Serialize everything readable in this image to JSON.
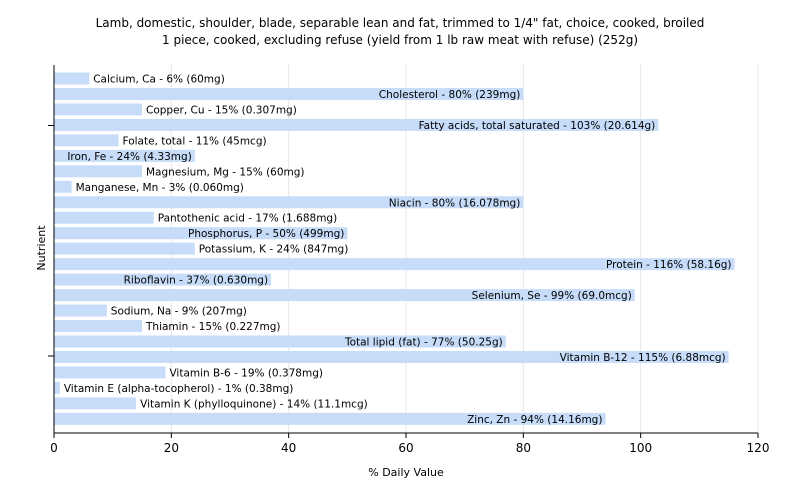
{
  "chart_data": {
    "type": "bar",
    "orientation": "horizontal",
    "title": [
      "Lamb, domestic, shoulder, blade, separable lean and fat, trimmed to 1/4\" fat, choice, cooked, broiled",
      "1 piece, cooked, excluding refuse (yield from 1 lb raw meat with refuse) (252g)"
    ],
    "xlabel": "% Daily Value",
    "ylabel": "Nutrient",
    "xlim": [
      0,
      120
    ],
    "xticks": [
      0,
      20,
      40,
      60,
      80,
      100,
      120
    ],
    "grid": true,
    "bar_color": "#c6dcf9",
    "categories": [
      "Calcium, Ca",
      "Cholesterol",
      "Copper, Cu",
      "Fatty acids, total saturated",
      "Folate, total",
      "Iron, Fe",
      "Magnesium, Mg",
      "Manganese, Mn",
      "Niacin",
      "Pantothenic acid",
      "Phosphorus, P",
      "Potassium, K",
      "Protein",
      "Riboflavin",
      "Selenium, Se",
      "Sodium, Na",
      "Thiamin",
      "Total lipid (fat)",
      "Vitamin B-12",
      "Vitamin B-6",
      "Vitamin E (alpha-tocopherol)",
      "Vitamin K (phylloquinone)",
      "Zinc, Zn"
    ],
    "values": [
      6,
      80,
      15,
      103,
      11,
      24,
      15,
      3,
      80,
      17,
      50,
      24,
      116,
      37,
      99,
      9,
      15,
      77,
      115,
      19,
      1,
      14,
      94
    ],
    "labels": [
      "Calcium, Ca - 6% (60mg)",
      "Cholesterol - 80% (239mg)",
      "Copper, Cu - 15% (0.307mg)",
      "Fatty acids, total saturated - 103% (20.614g)",
      "Folate, total - 11% (45mcg)",
      "Iron, Fe - 24% (4.33mg)",
      "Magnesium, Mg - 15% (60mg)",
      "Manganese, Mn - 3% (0.060mg)",
      "Niacin - 80% (16.078mg)",
      "Pantothenic acid - 17% (1.688mg)",
      "Phosphorus, P - 50% (499mg)",
      "Potassium, K - 24% (847mg)",
      "Protein - 116% (58.16g)",
      "Riboflavin - 37% (0.630mg)",
      "Selenium, Se - 99% (69.0mcg)",
      "Sodium, Na - 9% (207mg)",
      "Thiamin - 15% (0.227mg)",
      "Total lipid (fat) - 77% (50.25g)",
      "Vitamin B-12 - 115% (6.88mcg)",
      "Vitamin B-6 - 19% (0.378mg)",
      "Vitamin E (alpha-tocopherol) - 1% (0.38mg)",
      "Vitamin K (phylloquinone) - 14% (11.1mcg)",
      "Zinc, Zn - 94% (14.16mg)"
    ]
  }
}
